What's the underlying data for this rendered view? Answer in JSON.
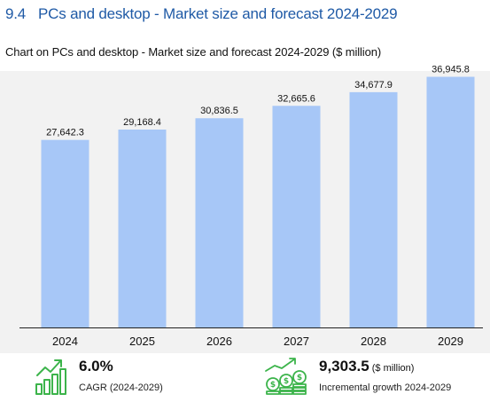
{
  "heading": {
    "number": "9.4",
    "text": "PCs and desktop - Market size and forecast 2024-2029"
  },
  "chart_data": {
    "type": "bar",
    "title": "Chart on PCs and desktop - Market size and forecast 2024-2029 ($ million)",
    "categories": [
      "2024",
      "2025",
      "2026",
      "2027",
      "2028",
      "2029"
    ],
    "values": [
      27642.3,
      29168.4,
      30836.5,
      32665.6,
      34677.9,
      36945.8
    ],
    "value_labels": [
      "27,642.3",
      "29,168.4",
      "30,836.5",
      "32,665.6",
      "34,677.9",
      "36,945.8"
    ],
    "xlabel": "",
    "ylabel": "",
    "ylim": [
      0,
      37800
    ],
    "grid": false,
    "bar_color": "#a7c7f7",
    "background": "#f2f2f2"
  },
  "stats": {
    "cagr": {
      "value": "6.0%",
      "label": "CAGR (2024-2029)"
    },
    "incremental": {
      "value": "9,303.5",
      "unit": "($ million)",
      "label": "Incremental growth 2024-2029"
    }
  },
  "icons": {
    "cagr": "bar-growth-icon",
    "incremental": "money-growth-icon",
    "color": "#3cb44b"
  },
  "colors": {
    "heading": "#1f5aa6"
  }
}
